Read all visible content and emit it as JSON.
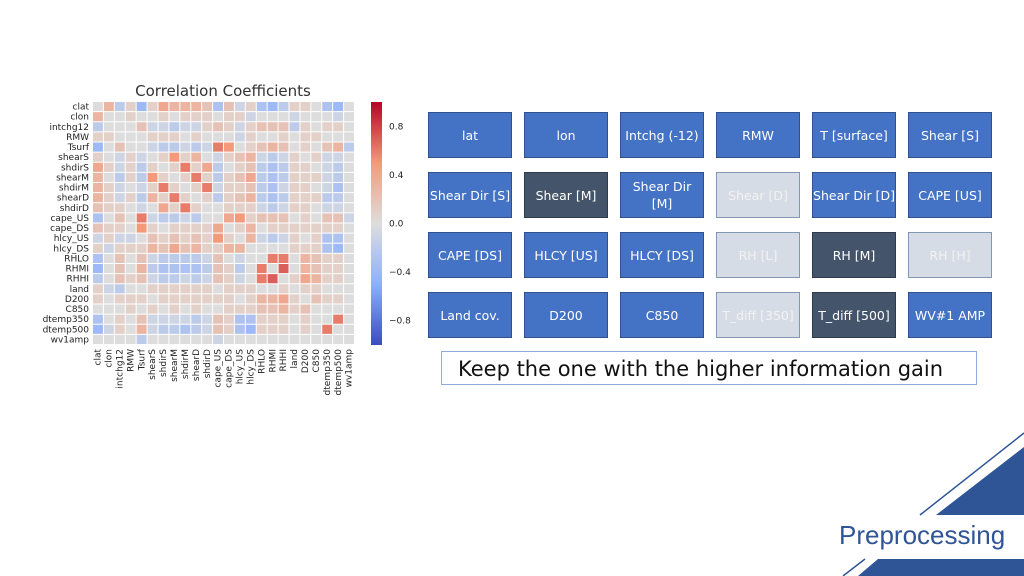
{
  "chart_data": {
    "type": "heatmap",
    "title": "Correlation Coefficients",
    "labels": [
      "clat",
      "clon",
      "intchg12",
      "RMW",
      "Tsurf",
      "shearS",
      "shdirS",
      "shearM",
      "shdirM",
      "shearD",
      "shdirD",
      "cape_US",
      "cape_DS",
      "hlcy_US",
      "hlcy_DS",
      "RHLO",
      "RHMI",
      "RHHI",
      "land",
      "D200",
      "C850",
      "dtemp350",
      "dtemp500",
      "wv1amp"
    ],
    "colormap": "coolwarm",
    "vmin": -1.0,
    "vmax": 1.0,
    "colorbar_ticks": [
      0.8,
      0.4,
      0.0,
      -0.4,
      -0.8
    ],
    "colorbar_tick_labels": [
      "0.8",
      "0.4",
      "0.0",
      "−0.4",
      "−0.8"
    ],
    "values": [
      [
        0,
        0.3,
        -0.2,
        0.1,
        -0.4,
        0.1,
        0.4,
        0.3,
        0.3,
        0.3,
        0.2,
        -0.3,
        0.2,
        -0.1,
        0.1,
        -0.3,
        -0.4,
        -0.2,
        0.1,
        0.1,
        0.0,
        -0.3,
        -0.4,
        0.0
      ],
      [
        0.3,
        0,
        0.0,
        0.1,
        0.0,
        0.0,
        0.1,
        0.0,
        0.1,
        0.1,
        0.1,
        0.0,
        0.1,
        0.1,
        -0.1,
        0.0,
        0.0,
        0.0,
        -0.1,
        0.0,
        0.0,
        0.0,
        -0.1,
        0.0
      ],
      [
        -0.2,
        0.0,
        0,
        0.0,
        0.2,
        -0.1,
        -0.1,
        -0.2,
        -0.1,
        -0.1,
        0.1,
        0.2,
        0.1,
        -0.1,
        0.1,
        0.2,
        0.2,
        0.2,
        -0.2,
        0.1,
        0.0,
        0.1,
        0.1,
        0.0
      ],
      [
        0.1,
        0.1,
        0.0,
        0,
        0.0,
        0.1,
        0.1,
        0.1,
        0.0,
        0.1,
        0.0,
        0.0,
        0.0,
        -0.1,
        0.1,
        0.0,
        0.0,
        0.1,
        0.0,
        0.1,
        0.1,
        0.0,
        0.0,
        0.0
      ],
      [
        -0.4,
        0.0,
        0.2,
        0.0,
        0,
        -0.1,
        -0.2,
        -0.2,
        -0.1,
        -0.2,
        -0.1,
        0.6,
        0.5,
        0.0,
        0.1,
        0.2,
        0.3,
        0.2,
        0.0,
        0.1,
        0.0,
        0.2,
        0.3,
        -0.2
      ],
      [
        0.1,
        0.0,
        -0.1,
        0.1,
        -0.1,
        0,
        0.1,
        0.5,
        0.1,
        0.3,
        0.0,
        -0.1,
        0.1,
        0.2,
        0.3,
        -0.1,
        -0.2,
        -0.1,
        0.1,
        0.0,
        0.1,
        -0.1,
        -0.1,
        0.0
      ],
      [
        0.4,
        0.1,
        -0.1,
        0.1,
        -0.2,
        0.1,
        0,
        0.1,
        0.6,
        0.1,
        0.4,
        -0.2,
        0.0,
        0.1,
        0.2,
        -0.2,
        -0.3,
        -0.2,
        0.1,
        0.1,
        0.0,
        -0.1,
        -0.2,
        0.0
      ],
      [
        0.3,
        0.0,
        -0.2,
        0.1,
        -0.2,
        0.5,
        0.1,
        0,
        0.1,
        0.6,
        0.1,
        -0.2,
        0.1,
        0.2,
        0.4,
        -0.2,
        -0.3,
        -0.2,
        0.1,
        0.1,
        0.1,
        -0.1,
        -0.2,
        0.0
      ],
      [
        0.3,
        0.1,
        -0.1,
        0.0,
        -0.1,
        0.1,
        0.6,
        0.1,
        0,
        0.1,
        0.6,
        -0.1,
        0.1,
        0.1,
        0.2,
        -0.2,
        -0.3,
        -0.1,
        0.1,
        0.1,
        0.0,
        -0.1,
        -0.3,
        0.0
      ],
      [
        0.3,
        0.1,
        -0.1,
        0.1,
        -0.2,
        0.3,
        0.1,
        0.6,
        0.1,
        0,
        0.1,
        -0.2,
        0.1,
        0.2,
        0.3,
        -0.2,
        -0.3,
        -0.2,
        0.1,
        0.1,
        0.1,
        -0.2,
        -0.2,
        0.0
      ],
      [
        0.2,
        0.1,
        0.1,
        0.0,
        -0.1,
        0.0,
        0.4,
        0.1,
        0.6,
        0.1,
        0,
        0.0,
        0.1,
        0.1,
        0.1,
        -0.1,
        -0.2,
        -0.1,
        0.1,
        0.1,
        0.0,
        -0.1,
        -0.1,
        0.0
      ],
      [
        -0.3,
        0.0,
        0.2,
        0.0,
        0.6,
        -0.1,
        -0.2,
        -0.2,
        -0.1,
        -0.2,
        0.0,
        0,
        0.4,
        0.5,
        0.1,
        0.2,
        0.2,
        0.2,
        0.0,
        0.1,
        0.0,
        0.2,
        0.2,
        -0.1
      ],
      [
        0.2,
        0.1,
        0.1,
        0.0,
        0.5,
        0.1,
        0.0,
        0.1,
        0.1,
        0.1,
        0.1,
        0.4,
        0,
        0.1,
        0.3,
        0.0,
        0.1,
        0.1,
        0.1,
        0.1,
        0.1,
        0.1,
        0.1,
        0.0
      ],
      [
        -0.1,
        0.1,
        -0.1,
        -0.1,
        0.0,
        0.2,
        0.1,
        0.2,
        0.1,
        0.2,
        0.1,
        0.5,
        0.1,
        0,
        0.3,
        -0.1,
        -0.2,
        -0.1,
        0.1,
        0.0,
        0.1,
        -0.3,
        -0.3,
        0.0
      ],
      [
        0.1,
        -0.1,
        0.1,
        0.1,
        0.1,
        0.3,
        0.2,
        0.4,
        0.2,
        0.3,
        0.1,
        0.1,
        0.3,
        0.3,
        0,
        0.0,
        0.0,
        0.0,
        0.1,
        0.1,
        0.1,
        -0.3,
        -0.4,
        0.0
      ],
      [
        -0.3,
        0.0,
        0.2,
        0.0,
        0.2,
        -0.1,
        -0.2,
        -0.2,
        -0.2,
        -0.2,
        -0.1,
        0.2,
        0.0,
        -0.1,
        0.0,
        0,
        0.6,
        0.6,
        0.0,
        0.3,
        0.2,
        0.1,
        0.1,
        0.0
      ],
      [
        -0.4,
        0.0,
        0.2,
        0.0,
        0.3,
        -0.2,
        -0.3,
        -0.3,
        -0.3,
        -0.3,
        -0.2,
        0.2,
        0.1,
        -0.2,
        0.0,
        0.6,
        0,
        0.7,
        0.0,
        0.3,
        0.2,
        0.1,
        0.1,
        0.0
      ],
      [
        -0.2,
        0.0,
        0.2,
        0.1,
        0.2,
        -0.1,
        -0.2,
        -0.2,
        -0.1,
        -0.2,
        -0.1,
        0.2,
        0.1,
        -0.1,
        0.0,
        0.6,
        0.7,
        0,
        0.1,
        0.4,
        0.3,
        0.1,
        0.1,
        0.0
      ],
      [
        0.1,
        -0.1,
        -0.2,
        0.0,
        0.0,
        0.1,
        0.1,
        0.1,
        0.1,
        0.1,
        0.1,
        0.0,
        0.1,
        0.1,
        0.1,
        0.0,
        0.0,
        0.1,
        0,
        0.1,
        0.1,
        0.0,
        0.0,
        0.0
      ],
      [
        0.1,
        0.0,
        0.1,
        0.1,
        0.1,
        0.0,
        0.1,
        0.1,
        0.1,
        0.1,
        0.1,
        0.1,
        0.1,
        0.0,
        0.1,
        0.3,
        0.3,
        0.4,
        0.1,
        0,
        0.2,
        0.1,
        0.1,
        0.0
      ],
      [
        0.0,
        0.0,
        0.0,
        0.1,
        0.0,
        0.1,
        0.0,
        0.1,
        0.0,
        0.1,
        0.0,
        0.0,
        0.1,
        0.1,
        0.1,
        0.2,
        0.2,
        0.3,
        0.1,
        0.2,
        0,
        0.0,
        0.0,
        0.0
      ],
      [
        -0.3,
        0.0,
        0.1,
        0.0,
        0.2,
        -0.1,
        -0.1,
        -0.1,
        -0.1,
        -0.2,
        -0.1,
        0.2,
        0.1,
        -0.3,
        -0.3,
        0.1,
        0.1,
        0.1,
        0.0,
        0.1,
        0.0,
        0,
        0.6,
        0.0
      ],
      [
        -0.4,
        -0.1,
        0.1,
        0.0,
        0.3,
        -0.1,
        -0.2,
        -0.2,
        -0.3,
        -0.2,
        -0.1,
        0.2,
        0.1,
        -0.3,
        -0.4,
        0.1,
        0.1,
        0.1,
        0.0,
        0.1,
        0.0,
        0.6,
        0,
        0.0
      ],
      [
        0.0,
        0.0,
        0.0,
        0.0,
        -0.2,
        0.0,
        0.0,
        0.0,
        0.0,
        0.0,
        0.0,
        -0.1,
        0.0,
        0.0,
        0.0,
        0.0,
        0.0,
        0.0,
        0.0,
        0.0,
        0.0,
        0.0,
        0.0,
        0
      ]
    ]
  },
  "feature_grid": {
    "colors": {
      "normal": "#4472c4",
      "dark": "#44546a",
      "light": "#d6dce5"
    },
    "boxes": [
      {
        "label": "lat",
        "state": "normal"
      },
      {
        "label": "lon",
        "state": "normal"
      },
      {
        "label": "Intchg (-12)",
        "state": "normal"
      },
      {
        "label": "RMW",
        "state": "normal"
      },
      {
        "label": "T [surface]",
        "state": "normal"
      },
      {
        "label": "Shear [S]",
        "state": "normal"
      },
      {
        "label": "Shear Dir [S]",
        "state": "normal"
      },
      {
        "label": "Shear [M]",
        "state": "dark"
      },
      {
        "label": "Shear Dir [M]",
        "state": "normal"
      },
      {
        "label": "Shear [D]",
        "state": "light"
      },
      {
        "label": "Shear Dir [D]",
        "state": "normal"
      },
      {
        "label": "CAPE [US]",
        "state": "normal"
      },
      {
        "label": "CAPE [DS]",
        "state": "normal"
      },
      {
        "label": "HLCY [US]",
        "state": "normal"
      },
      {
        "label": "HLCY [DS]",
        "state": "normal"
      },
      {
        "label": "RH [L]",
        "state": "light"
      },
      {
        "label": "RH [M]",
        "state": "dark"
      },
      {
        "label": "RH [H]",
        "state": "light"
      },
      {
        "label": "Land cov.",
        "state": "normal"
      },
      {
        "label": "D200",
        "state": "normal"
      },
      {
        "label": "C850",
        "state": "normal"
      },
      {
        "label": "T_diff [350]",
        "state": "light"
      },
      {
        "label": "T_diff [500]",
        "state": "dark"
      },
      {
        "label": "WV#1 AMP",
        "state": "normal"
      }
    ]
  },
  "note": "Keep the one with the higher information gain",
  "section_title": "Preprocessing",
  "accent_color": "#2f5597"
}
